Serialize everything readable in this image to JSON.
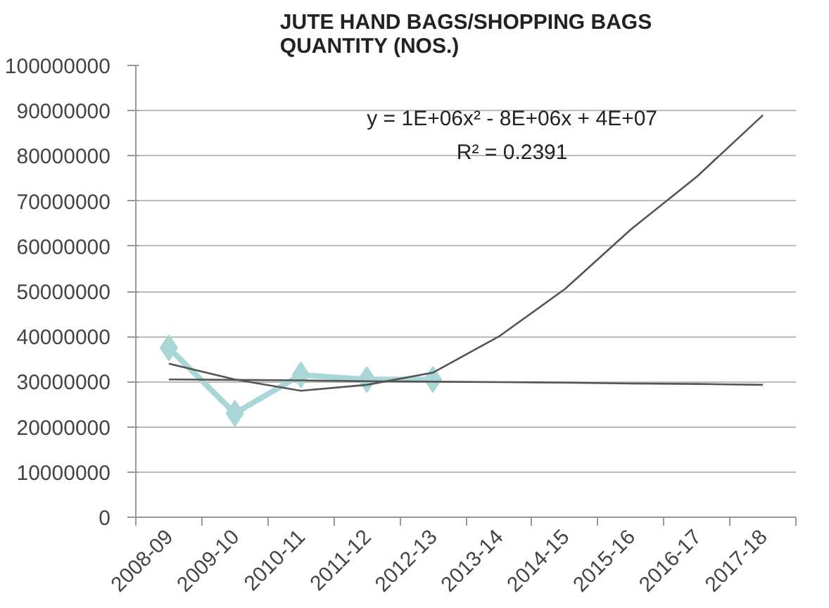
{
  "chart_data": {
    "type": "line",
    "title": "JUTE HAND BAGS/SHOPPING BAGS\nQUANTITY (NOS.)",
    "categories": [
      "2008-09",
      "2009-10",
      "2010-11",
      "2011-12",
      "2012-13",
      "2013-14",
      "2014-15",
      "2015-16",
      "2016-17",
      "2017-18"
    ],
    "series": [
      {
        "color": "#a9d6d6",
        "marker": "diamond",
        "values": [
          37500000,
          23000000,
          31500000,
          30500000,
          30500000,
          null,
          null,
          null,
          null,
          null
        ]
      },
      {
        "color": "#555555",
        "marker": "none",
        "values": [
          30500000,
          30400000,
          30300000,
          30100000,
          30000000,
          29900000,
          29800000,
          29600000,
          29500000,
          29300000
        ]
      },
      {
        "color": "#555555",
        "marker": "none",
        "values": [
          34000000,
          30500000,
          28000000,
          29300000,
          32000000,
          40000000,
          50500000,
          63700000,
          75400000,
          89000000
        ]
      }
    ],
    "annotations": [
      "y = 1E+06x² - 8E+06x + 4E+07",
      "R² = 0.2391"
    ],
    "ylim": [
      0,
      100000000
    ],
    "yticks": [
      0,
      10000000,
      20000000,
      30000000,
      40000000,
      50000000,
      60000000,
      70000000,
      80000000,
      90000000,
      100000000
    ],
    "grid": "y"
  }
}
